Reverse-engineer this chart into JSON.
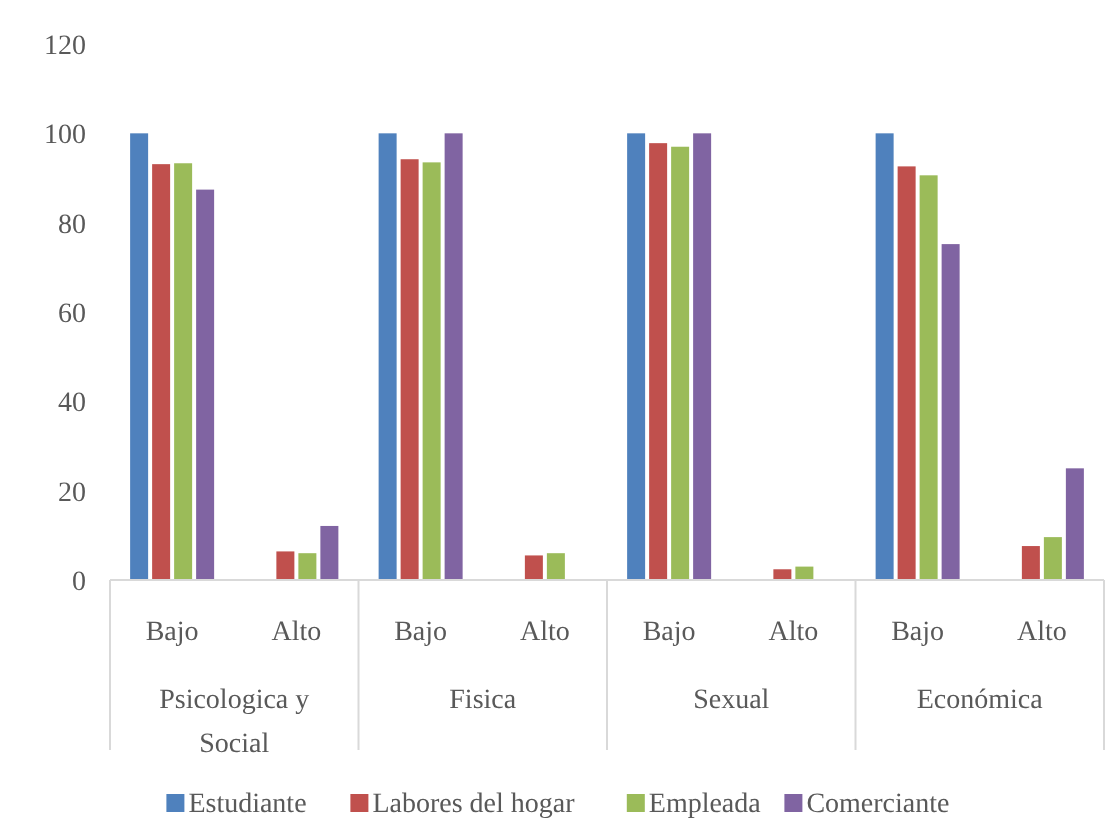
{
  "chart_data": {
    "type": "bar",
    "categories": [
      "Bajo",
      "Alto",
      "Bajo",
      "Alto",
      "Bajo",
      "Alto",
      "Bajo",
      "Alto"
    ],
    "series": [
      {
        "name": "Estudiante",
        "color": "#4f81bd",
        "values": [
          100,
          0,
          100,
          0,
          100,
          0,
          100,
          0
        ]
      },
      {
        "name": "Labores del hogar",
        "color": "#c0504d",
        "values": [
          93.1,
          6.4,
          94.2,
          5.5,
          97.8,
          2.4,
          92.6,
          7.6
        ]
      },
      {
        "name": "Empleada",
        "color": "#9bbb59",
        "values": [
          93.3,
          6.0,
          93.5,
          6.0,
          97.0,
          3.0,
          90.6,
          9.6
        ]
      },
      {
        "name": "Comerciante",
        "color": "#8064a2",
        "values": [
          87.4,
          12.1,
          100,
          0,
          100,
          0,
          75.2,
          25.0
        ]
      }
    ],
    "annotations": [
      "Psicologica y Social",
      "Fisica",
      "Sexual",
      "Económica"
    ],
    "ylim": [
      0,
      120
    ],
    "yticks": [
      0,
      20,
      40,
      60,
      80,
      100,
      120
    ],
    "grid": false,
    "legend": "bottom"
  }
}
